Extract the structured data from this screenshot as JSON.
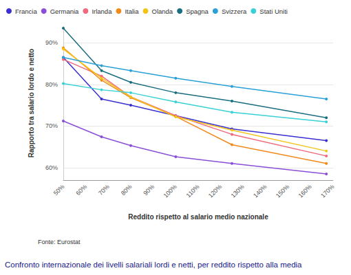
{
  "chart_data": {
    "type": "line",
    "title": "Confronto internazionale dei livelli salariali lordi e netti, per reddito rispetto alla media",
    "source": "Fonte: Eurostat",
    "x_label": "Reddito rispetto al salario medio nazionale",
    "y_label": "Rapporto tra salario lordo e netto",
    "x": [
      50,
      67,
      80,
      100,
      125,
      167
    ],
    "series": [
      {
        "name": "Francia",
        "color": "#3a2fd1",
        "values": [
          86.5,
          76.5,
          75,
          72.5,
          69.3,
          66.5
        ]
      },
      {
        "name": "Germania",
        "color": "#8a4fd8",
        "values": [
          71.2,
          67.4,
          65.3,
          62.6,
          61,
          58.5
        ]
      },
      {
        "name": "Irlanda",
        "color": "#f0687a",
        "values": [
          86,
          82,
          77,
          72.5,
          68,
          62.8
        ]
      },
      {
        "name": "Italia",
        "color": "#f28a1a",
        "values": [
          88.8,
          81,
          76.8,
          72.3,
          65.5,
          61
        ]
      },
      {
        "name": "Olanda",
        "color": "#f2c41a",
        "values": [
          88.5,
          81.5,
          77,
          72.2,
          69,
          64
        ]
      },
      {
        "name": "Spagna",
        "color": "#1a6e80",
        "values": [
          93.5,
          83.3,
          80.5,
          78,
          76,
          72
        ]
      },
      {
        "name": "Svizzera",
        "color": "#2aa0d8",
        "values": [
          86.5,
          84.5,
          83.3,
          81.5,
          79.5,
          76.5
        ]
      },
      {
        "name": "Stati Uniti",
        "color": "#36d2d6",
        "values": [
          80.2,
          78.7,
          78,
          75.8,
          73.3,
          71
        ]
      }
    ],
    "xlim": [
      50,
      170
    ],
    "xticks": [
      {
        "value": 50,
        "label": "50%"
      },
      {
        "value": 60,
        "label": "60%"
      },
      {
        "value": 70,
        "label": "70%"
      },
      {
        "value": 80,
        "label": "80%"
      },
      {
        "value": 90,
        "label": "90%"
      },
      {
        "value": 100,
        "label": "100%"
      },
      {
        "value": 110,
        "label": "110%"
      },
      {
        "value": 120,
        "label": "120%"
      },
      {
        "value": 130,
        "label": "130%"
      },
      {
        "value": 140,
        "label": "140%"
      },
      {
        "value": 150,
        "label": "150%"
      },
      {
        "value": 160,
        "label": "160%"
      },
      {
        "value": 170,
        "label": "170%"
      }
    ],
    "ylim": [
      57,
      94
    ],
    "yticks": [
      {
        "value": 60,
        "label": "60%"
      },
      {
        "value": 70,
        "label": "70%"
      },
      {
        "value": 80,
        "label": "80%"
      },
      {
        "value": 90,
        "label": "90%"
      }
    ],
    "grid": true,
    "legend": "top-left",
    "marker": "circle"
  }
}
